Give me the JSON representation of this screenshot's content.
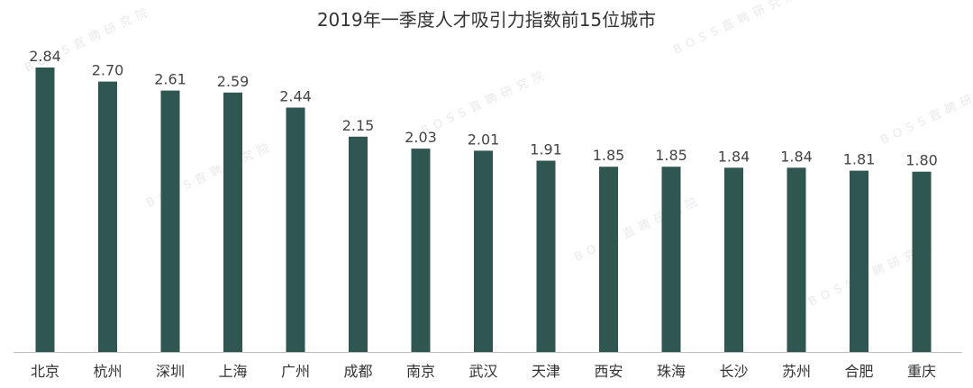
{
  "chart_data": {
    "type": "bar",
    "title": "2019年一季度人才吸引力指数前15位城市",
    "categories": [
      "北京",
      "杭州",
      "深圳",
      "上海",
      "广州",
      "成都",
      "南京",
      "武汉",
      "天津",
      "西安",
      "珠海",
      "长沙",
      "苏州",
      "合肥",
      "重庆"
    ],
    "values": [
      2.84,
      2.7,
      2.61,
      2.59,
      2.44,
      2.15,
      2.03,
      2.01,
      1.91,
      1.85,
      1.85,
      1.84,
      1.84,
      1.81,
      1.8
    ],
    "value_labels": [
      "2.84",
      "2.70",
      "2.61",
      "2.59",
      "2.44",
      "2.15",
      "2.03",
      "2.01",
      "1.91",
      "1.85",
      "1.85",
      "1.84",
      "1.84",
      "1.81",
      "1.80"
    ],
    "ylim": [
      0,
      2.84
    ],
    "grid": false,
    "legend": "none",
    "bar_color": "#2f5650",
    "axis_color": "#bfbfbf"
  },
  "watermark": "BOSS直聘研究院"
}
